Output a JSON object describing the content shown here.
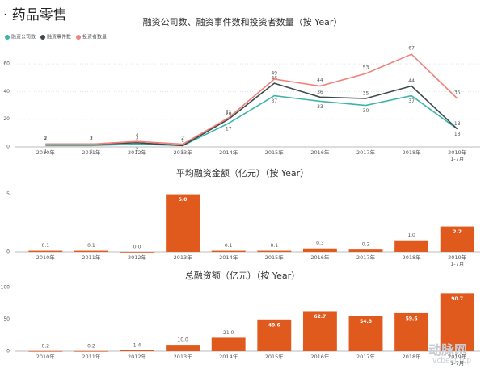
{
  "header": {
    "title": "· 药品零售"
  },
  "chart_data": [
    {
      "type": "line",
      "title": "融资公司数、融资事件数和投资者数量（按 Year）",
      "categories": [
        "2010年",
        "2011年",
        "2012年",
        "2013年",
        "2014年",
        "2015年",
        "2016年",
        "2017年",
        "2018年",
        "2019年\n1-7月"
      ],
      "series": [
        {
          "name": "融资公司数",
          "color": "#3ab5a8",
          "values": [
            1,
            1,
            2,
            1,
            17,
            37,
            33,
            30,
            37,
            13
          ]
        },
        {
          "name": "融资事件数",
          "color": "#3c4a4f",
          "values": [
            2,
            2,
            3,
            1,
            20,
            46,
            36,
            35,
            44,
            13
          ]
        },
        {
          "name": "投资者数量",
          "color": "#f0827a",
          "values": [
            2,
            2,
            4,
            2,
            21,
            49,
            44,
            53,
            67,
            35
          ]
        }
      ],
      "ylim": [
        0,
        70
      ],
      "yticks": [
        0,
        20,
        40,
        60
      ],
      "grid": true,
      "legend": "top-left"
    },
    {
      "type": "bar",
      "title": "平均融资金额（亿元）（按 Year）",
      "categories": [
        "2010年",
        "2011年",
        "2012年",
        "2013年",
        "2014年",
        "2015年",
        "2016年",
        "2017年",
        "2018年",
        "2019年\n1-7月"
      ],
      "values": [
        0.1,
        0.1,
        0.0,
        5.0,
        0.1,
        0.1,
        0.3,
        0.2,
        1.0,
        2.2
      ],
      "value_labels": [
        "0.1",
        "0.1",
        "0.0",
        "5.0",
        "0.1",
        "0.1",
        "0.3",
        "0.2",
        "1.0",
        "2.2"
      ],
      "color": "#e05a1e",
      "ylim": [
        0,
        5.6
      ],
      "yticks": [
        0,
        5
      ],
      "grid": false
    },
    {
      "type": "bar",
      "title": "总融资额（亿元）（按 Year）",
      "categories": [
        "2010年",
        "2011年",
        "2012年",
        "2013年",
        "2014年",
        "2015年",
        "2016年",
        "2017年",
        "2018年",
        "2019年\n1-7月"
      ],
      "values": [
        0.2,
        0.2,
        1.4,
        10.0,
        21.0,
        49.6,
        62.7,
        54.8,
        59.6,
        90.7
      ],
      "value_labels": [
        "0.2",
        "0.2",
        "1.4",
        "10.0",
        "21.0",
        "49.6",
        "62.7",
        "54.8",
        "59.6",
        "90.7"
      ],
      "color": "#e05a1e",
      "ylim": [
        0,
        100
      ],
      "yticks": [
        0,
        50,
        100
      ],
      "grid": false
    }
  ],
  "watermark": {
    "name": "动脉网",
    "url": "vcbeat.top"
  }
}
